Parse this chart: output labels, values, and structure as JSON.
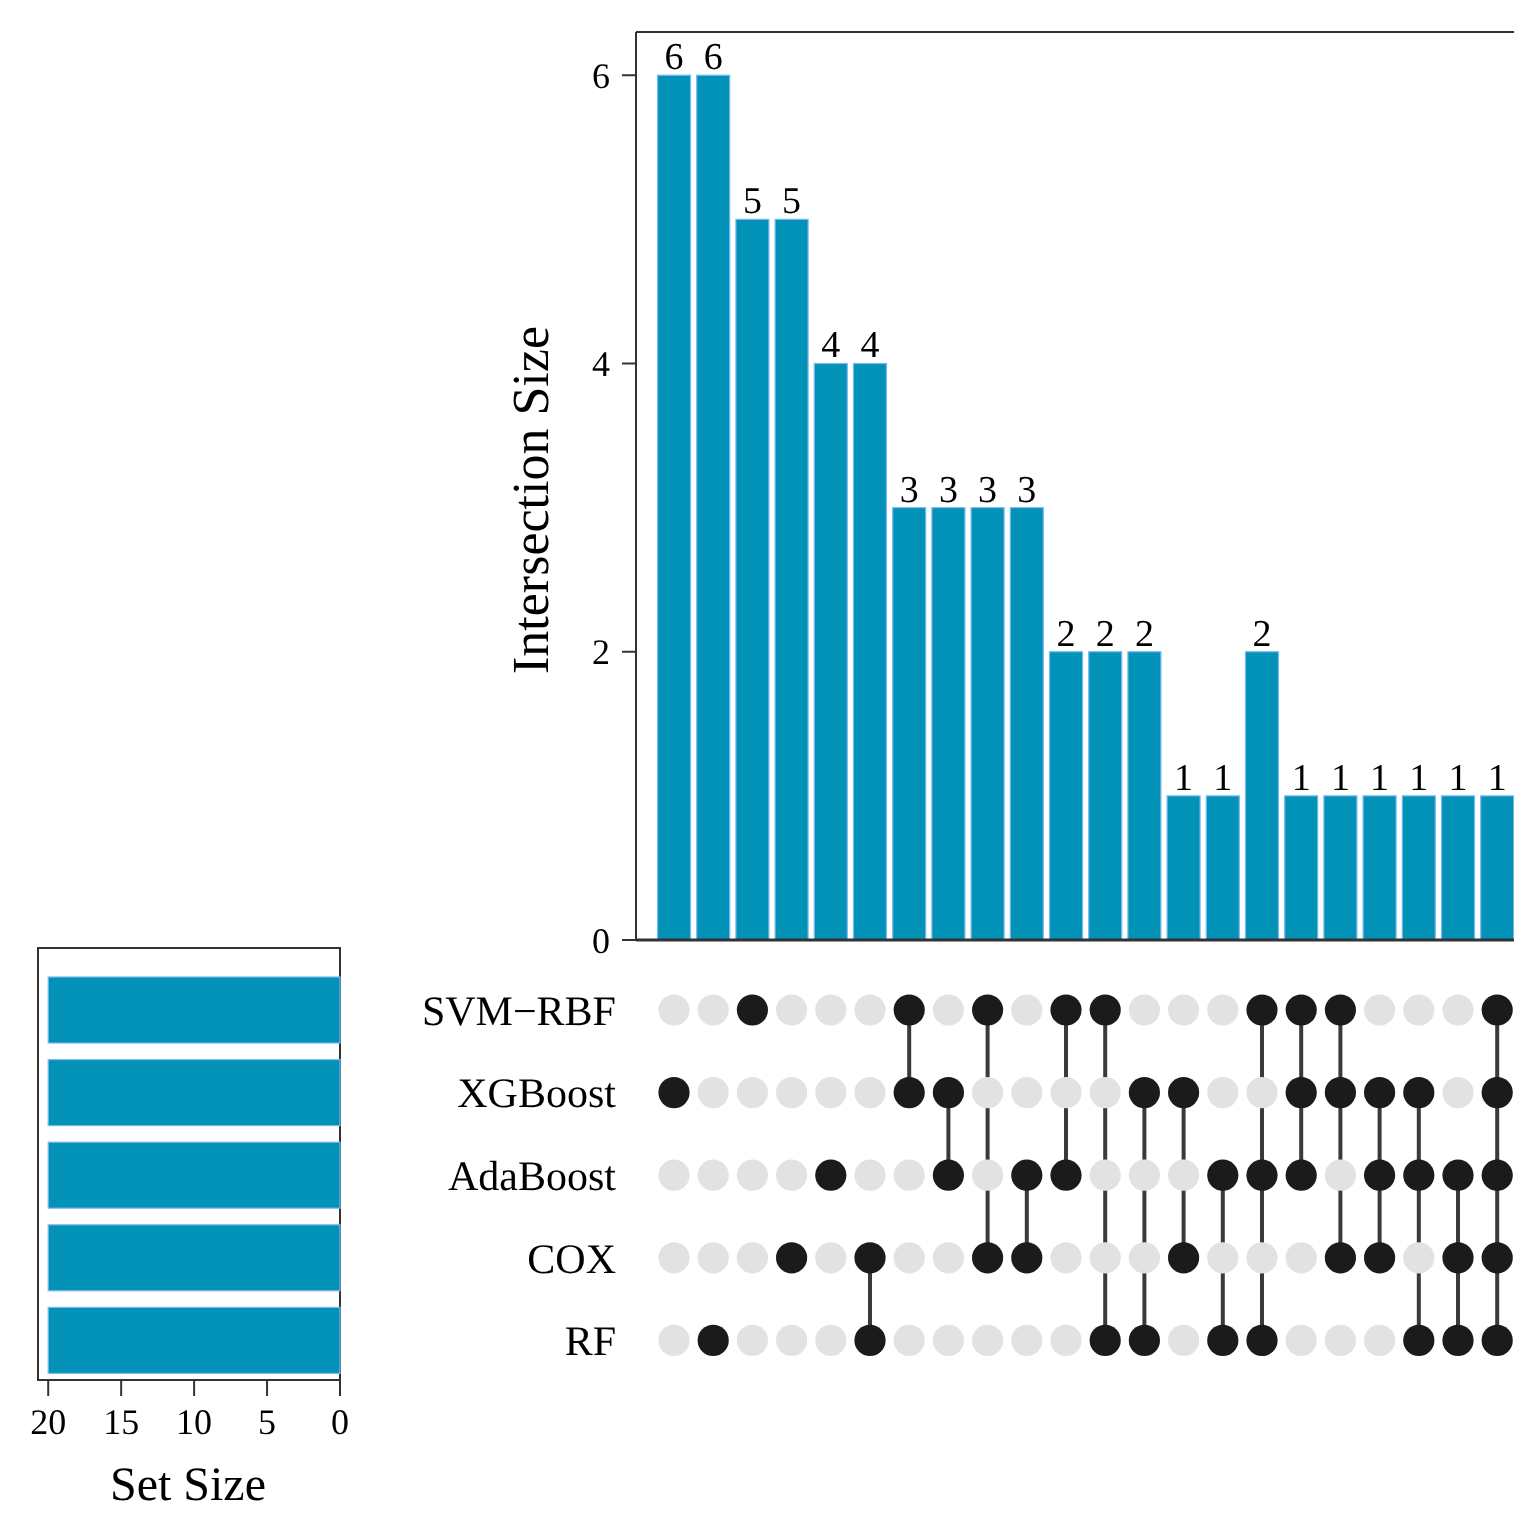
{
  "chart_data": [
    {
      "type": "bar",
      "ylabel": "Intersection Size",
      "categories": [
        null,
        null,
        null,
        null,
        null,
        null,
        null,
        null,
        null,
        null,
        null,
        null,
        null,
        null,
        null,
        null,
        null,
        null,
        null,
        null,
        null,
        null
      ],
      "values": [
        6,
        6,
        5,
        5,
        4,
        4,
        3,
        3,
        3,
        3,
        2,
        2,
        2,
        1,
        1,
        2,
        1,
        1,
        1,
        1,
        1,
        1
      ],
      "color": "#0392b7",
      "ylim": [
        0,
        6.3
      ],
      "yticks": [
        0,
        2,
        4,
        6
      ],
      "data_labels": true,
      "grid": false
    },
    {
      "type": "bar",
      "orientation": "horizontal",
      "xlabel": "Set Size",
      "categories": [
        null,
        null,
        null,
        null,
        null
      ],
      "values": [
        20,
        20,
        20,
        20,
        20
      ],
      "color": "#0392b7",
      "xlim": [
        20.7,
        0
      ],
      "xticks": [
        20,
        15,
        10,
        5,
        0
      ],
      "tick_labels": "x",
      "grid": false
    },
    {
      "type": "heatmap",
      "categories": [
        null,
        null,
        null,
        null,
        null,
        null,
        null,
        null,
        null,
        null,
        null,
        null,
        null,
        null,
        null,
        null,
        null,
        null,
        null,
        null,
        null,
        null
      ],
      "y_categories": [
        "SVM−RBF",
        "XGBoost",
        "AdaBoost",
        "COX",
        "RF"
      ],
      "colors": [
        "#e2e2e2",
        "#1b1b1b"
      ],
      "cells": [
        [
          false,
          false,
          true,
          false,
          false,
          false,
          true,
          false,
          true,
          false,
          true,
          true,
          false,
          false,
          false,
          true,
          true,
          true,
          false,
          false,
          false,
          true
        ],
        [
          true,
          false,
          false,
          false,
          false,
          false,
          true,
          true,
          false,
          false,
          false,
          false,
          true,
          true,
          false,
          false,
          true,
          true,
          true,
          true,
          false,
          true
        ],
        [
          false,
          false,
          false,
          false,
          true,
          false,
          false,
          true,
          false,
          true,
          true,
          false,
          false,
          false,
          true,
          true,
          true,
          false,
          true,
          true,
          true,
          true
        ],
        [
          false,
          false,
          false,
          true,
          false,
          true,
          false,
          false,
          true,
          true,
          false,
          false,
          false,
          true,
          false,
          false,
          false,
          true,
          true,
          false,
          true,
          true
        ],
        [
          false,
          true,
          false,
          false,
          false,
          true,
          false,
          false,
          false,
          false,
          false,
          true,
          true,
          false,
          true,
          true,
          false,
          false,
          false,
          true,
          true,
          true
        ]
      ]
    }
  ]
}
